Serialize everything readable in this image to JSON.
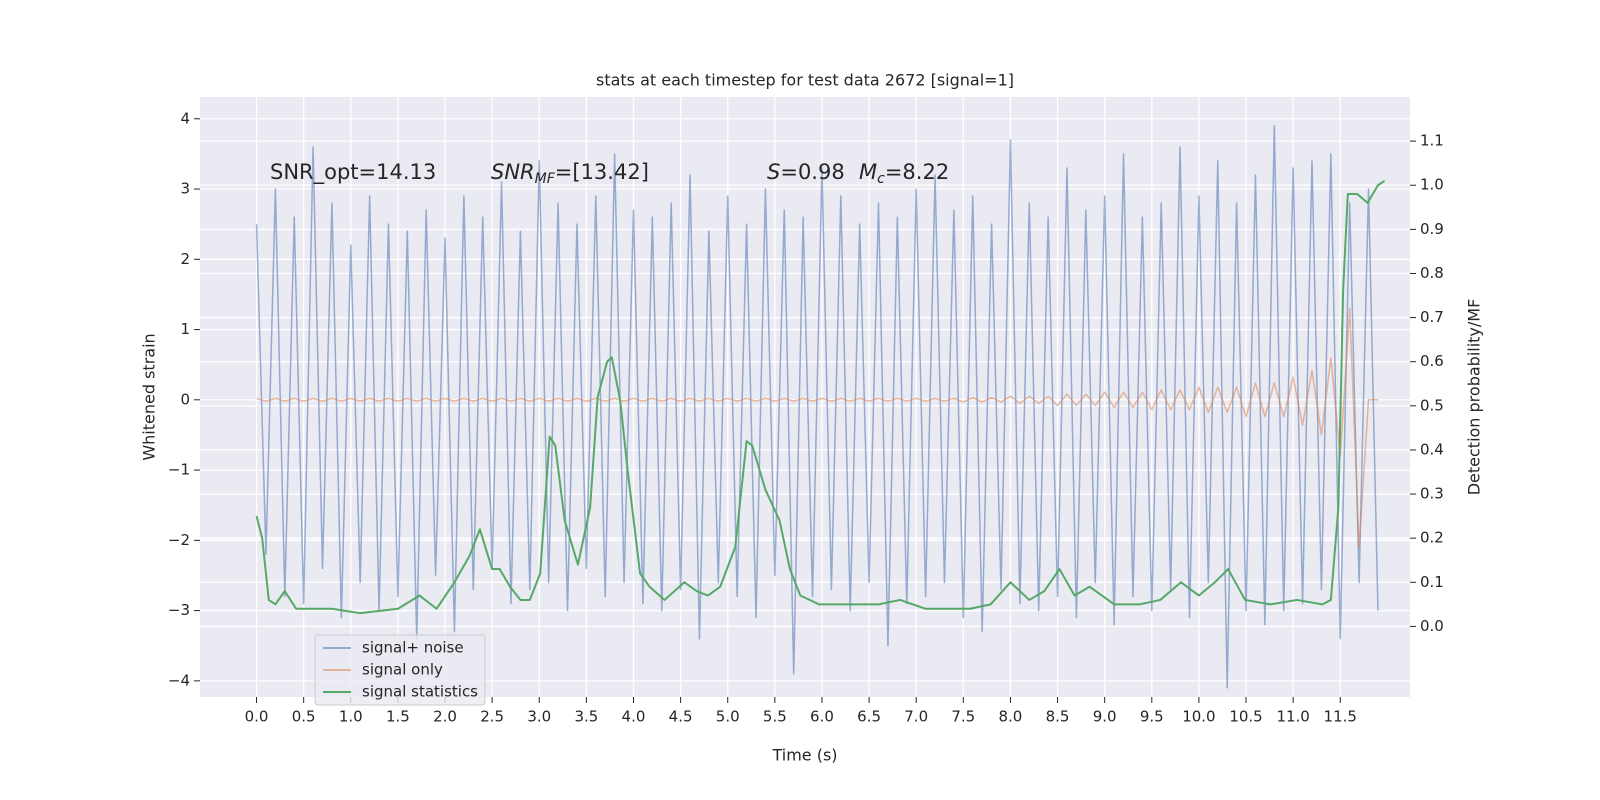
{
  "chart_data": {
    "type": "line",
    "title": "stats at each timestep for test data 2672 [signal=1]",
    "xlabel": "Time (s)",
    "ylabel": "Whitened strain",
    "y2label": "Detection probability/MF",
    "grid": true,
    "legend": "lower left",
    "xlim": [
      -0.6,
      12.24
    ],
    "ylim": [
      -4.23,
      4.31
    ],
    "y2lim": [
      -0.16,
      1.2
    ],
    "xticks": [
      {
        "value": 0,
        "label": "0.0"
      },
      0.5,
      {
        "value": 1,
        "label": "1.0"
      },
      1.5,
      {
        "value": 2,
        "label": "2.0"
      },
      2.5,
      {
        "value": 3,
        "label": "3.0"
      },
      3.5,
      {
        "value": 4,
        "label": "4.0"
      },
      4.5,
      {
        "value": 5,
        "label": "5.0"
      },
      5.5,
      {
        "value": 6,
        "label": "6.0"
      },
      6.5,
      {
        "value": 7,
        "label": "7.0"
      },
      7.5,
      {
        "value": 8,
        "label": "8.0"
      },
      8.5,
      {
        "value": 9,
        "label": "9.0"
      },
      9.5,
      {
        "value": 10,
        "label": "10.0"
      },
      10.5,
      {
        "value": 11,
        "label": "11.0"
      },
      11.5
    ],
    "yticks": [
      {
        "value": -4,
        "label": "−4"
      },
      {
        "value": -3,
        "label": "−3"
      },
      {
        "value": -2,
        "label": "−2"
      },
      {
        "value": -1,
        "label": "−1"
      },
      0,
      1,
      2,
      3,
      4
    ],
    "y2ticks": [
      {
        "value": 0,
        "label": "0.0"
      },
      0.1,
      0.2,
      0.3,
      0.4,
      0.5,
      0.6,
      0.7,
      0.8,
      0.9,
      {
        "value": 1,
        "label": "1.0"
      },
      1.1
    ],
    "annotations": [
      [
        {
          "text": "SNR_opt=14.13"
        }
      ],
      [
        {
          "text": "SNR",
          "italic": true
        },
        {
          "text": "MF",
          "italic": true,
          "sub": true
        },
        {
          "text": "=[13.42]"
        }
      ],
      [
        {
          "text": "S",
          "italic": true
        },
        {
          "text": "=0.98"
        }
      ],
      [
        {
          "text": "M",
          "italic": true
        },
        {
          "text": "c",
          "italic": true,
          "sub": true
        },
        {
          "text": "=8.22"
        }
      ]
    ],
    "x": [
      0.0,
      0.1,
      0.2,
      0.3,
      0.4,
      0.5,
      0.6,
      0.7,
      0.8,
      0.9,
      1.0,
      1.1,
      1.2,
      1.3,
      1.4,
      1.5,
      1.6,
      1.7,
      1.8,
      1.9,
      2.0,
      2.1,
      2.2,
      2.3,
      2.4,
      2.5,
      2.6,
      2.7,
      2.8,
      2.9,
      3.0,
      3.1,
      3.2,
      3.3,
      3.4,
      3.5,
      3.6,
      3.7,
      3.8,
      3.9,
      4.0,
      4.1,
      4.2,
      4.3,
      4.4,
      4.5,
      4.6,
      4.7,
      4.8,
      4.9,
      5.0,
      5.1,
      5.2,
      5.3,
      5.4,
      5.5,
      5.6,
      5.7,
      5.8,
      5.9,
      6.0,
      6.1,
      6.2,
      6.3,
      6.4,
      6.5,
      6.6,
      6.7,
      6.8,
      6.9,
      7.0,
      7.1,
      7.2,
      7.3,
      7.4,
      7.5,
      7.6,
      7.7,
      7.8,
      7.9,
      8.0,
      8.1,
      8.2,
      8.3,
      8.4,
      8.5,
      8.6,
      8.7,
      8.8,
      8.9,
      9.0,
      9.1,
      9.2,
      9.3,
      9.4,
      9.5,
      9.6,
      9.7,
      9.8,
      9.9,
      10.0,
      10.1,
      10.2,
      10.3,
      10.4,
      10.5,
      10.6,
      10.7,
      10.8,
      10.9,
      11.0,
      11.1,
      11.2,
      11.3,
      11.4,
      11.5,
      11.6,
      11.7,
      11.8,
      11.9
    ],
    "series": [
      {
        "name": "signal+ noise",
        "color": "#4c72b0",
        "values": [
          2.5,
          -2.2,
          3.0,
          -2.8,
          2.6,
          -2.9,
          3.6,
          -2.4,
          2.8,
          -3.1,
          2.2,
          -2.6,
          2.9,
          -3.0,
          2.5,
          -2.8,
          2.4,
          -3.4,
          2.7,
          -2.5,
          2.3,
          -3.3,
          2.9,
          -2.7,
          2.6,
          -2.4,
          3.1,
          -2.9,
          2.4,
          -2.7,
          3.4,
          -2.6,
          2.8,
          -3.0,
          2.5,
          -2.4,
          2.9,
          -2.8,
          3.5,
          -2.6,
          2.7,
          -2.9,
          2.6,
          -3.0,
          2.8,
          -2.7,
          3.2,
          -3.4,
          2.4,
          -2.6,
          2.9,
          -2.8,
          2.5,
          -3.1,
          3.0,
          -2.5,
          2.7,
          -3.9,
          2.6,
          -2.8,
          3.3,
          -2.7,
          2.9,
          -3.0,
          2.5,
          -2.6,
          2.8,
          -3.5,
          2.6,
          -2.9,
          3.0,
          -2.8,
          3.2,
          -2.6,
          2.7,
          -3.1,
          2.9,
          -3.3,
          2.5,
          -2.7,
          3.7,
          -2.9,
          2.8,
          -3.0,
          2.6,
          -2.8,
          3.3,
          -3.1,
          2.7,
          -2.6,
          2.9,
          -3.2,
          3.5,
          -2.8,
          2.6,
          -3.0,
          2.8,
          -2.7,
          3.6,
          -3.1,
          2.9,
          -2.6,
          3.4,
          -4.1,
          2.8,
          -3.0,
          3.2,
          -3.2,
          3.9,
          -3.0,
          3.3,
          -2.9,
          3.4,
          -2.7,
          3.5,
          -3.4,
          2.8,
          -2.6,
          3.0,
          -3.0
        ]
      },
      {
        "name": "signal only",
        "color": "#dd8452",
        "values": [
          0.02,
          -0.02,
          0.02,
          -0.02,
          0.02,
          -0.02,
          0.02,
          -0.02,
          0.02,
          -0.02,
          0.02,
          -0.02,
          0.02,
          -0.02,
          0.02,
          -0.02,
          0.02,
          -0.02,
          0.02,
          -0.02,
          0.02,
          -0.02,
          0.02,
          -0.02,
          0.02,
          -0.02,
          0.02,
          -0.02,
          0.02,
          -0.02,
          0.02,
          -0.02,
          0.02,
          -0.02,
          0.02,
          -0.02,
          0.02,
          -0.02,
          0.02,
          -0.02,
          0.02,
          -0.02,
          0.02,
          -0.02,
          0.02,
          -0.02,
          0.02,
          -0.02,
          0.02,
          -0.02,
          0.02,
          -0.02,
          0.02,
          -0.02,
          0.02,
          -0.02,
          0.02,
          -0.02,
          0.02,
          -0.02,
          0.02,
          -0.02,
          0.02,
          -0.02,
          0.02,
          -0.02,
          0.02,
          -0.02,
          0.02,
          -0.02,
          0.02,
          -0.02,
          0.02,
          -0.02,
          0.02,
          -0.03,
          0.03,
          -0.03,
          0.03,
          -0.03,
          0.05,
          -0.05,
          0.05,
          -0.05,
          0.05,
          -0.08,
          0.08,
          -0.08,
          0.08,
          -0.08,
          0.11,
          -0.11,
          0.11,
          -0.11,
          0.11,
          -0.14,
          0.14,
          -0.14,
          0.14,
          -0.14,
          0.18,
          -0.18,
          0.18,
          -0.18,
          0.18,
          -0.24,
          0.24,
          -0.24,
          0.24,
          -0.24,
          0.32,
          -0.36,
          0.42,
          -0.5,
          0.6,
          -0.8,
          1.3,
          -2.1,
          0,
          0
        ]
      },
      {
        "name": "signal statistics",
        "color": "#55a868",
        "axis": "y2",
        "x": [
          0.0,
          0.06,
          0.13,
          0.2,
          0.3,
          0.42,
          0.55,
          0.8,
          1.1,
          1.5,
          1.73,
          1.91,
          2.1,
          2.26,
          2.37,
          2.5,
          2.58,
          2.69,
          2.8,
          2.9,
          3.01,
          3.11,
          3.17,
          3.27,
          3.41,
          3.54,
          3.62,
          3.72,
          3.77,
          3.86,
          3.94,
          4.07,
          4.17,
          4.33,
          4.54,
          4.67,
          4.79,
          4.92,
          5.08,
          5.2,
          5.26,
          5.4,
          5.55,
          5.66,
          5.77,
          5.97,
          6.28,
          6.6,
          6.83,
          7.1,
          7.41,
          7.57,
          7.79,
          8.0,
          8.2,
          8.36,
          8.52,
          8.68,
          8.84,
          9.1,
          9.37,
          9.59,
          9.81,
          10.0,
          10.17,
          10.31,
          10.49,
          10.76,
          11.04,
          11.31,
          11.4,
          11.48,
          11.53,
          11.58,
          11.68,
          11.79,
          11.9,
          11.97
        ],
        "values": [
          0.25,
          0.2,
          0.06,
          0.05,
          0.08,
          0.04,
          0.04,
          0.04,
          0.03,
          0.04,
          0.07,
          0.04,
          0.1,
          0.16,
          0.22,
          0.13,
          0.13,
          0.09,
          0.06,
          0.06,
          0.12,
          0.43,
          0.41,
          0.24,
          0.14,
          0.27,
          0.52,
          0.6,
          0.61,
          0.51,
          0.35,
          0.12,
          0.09,
          0.06,
          0.1,
          0.08,
          0.07,
          0.09,
          0.18,
          0.42,
          0.41,
          0.31,
          0.24,
          0.13,
          0.07,
          0.05,
          0.05,
          0.05,
          0.06,
          0.04,
          0.04,
          0.04,
          0.05,
          0.1,
          0.06,
          0.08,
          0.13,
          0.07,
          0.09,
          0.05,
          0.05,
          0.06,
          0.1,
          0.07,
          0.1,
          0.13,
          0.06,
          0.05,
          0.06,
          0.05,
          0.06,
          0.27,
          0.76,
          0.98,
          0.98,
          0.96,
          1.0,
          1.01
        ]
      }
    ]
  }
}
